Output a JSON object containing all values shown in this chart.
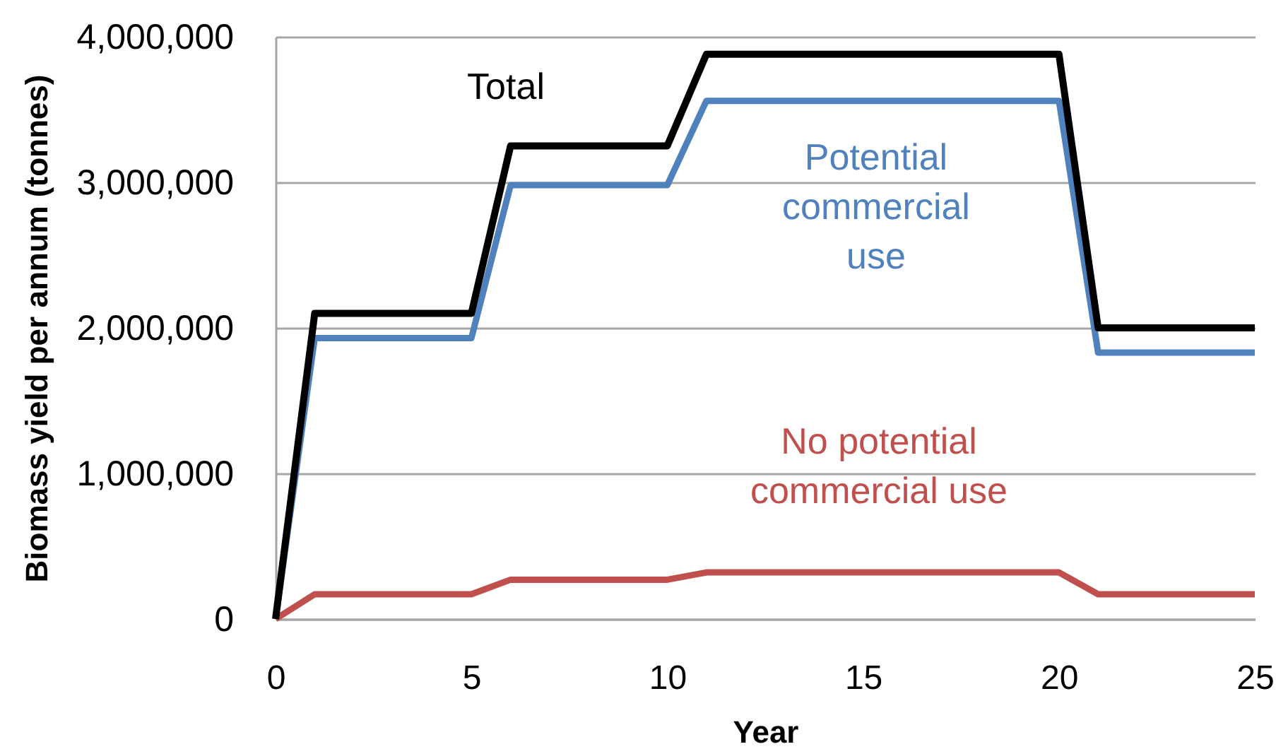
{
  "chart_data": {
    "type": "line",
    "xlabel": "Year",
    "ylabel": "Biomass yield per annum (tonnes)",
    "xlim": [
      0,
      25
    ],
    "xticks": [
      0,
      5,
      10,
      15,
      20,
      25
    ],
    "ylim": [
      0,
      4000000
    ],
    "yticks": [
      0,
      {
        "value": 1000000,
        "label": "1,000,000"
      },
      {
        "value": 2000000,
        "label": "2,000,000"
      },
      {
        "value": 3000000,
        "label": "3,000,000"
      },
      {
        "value": 4000000,
        "label": "4,000,000"
      }
    ],
    "grid": "y",
    "line_style": "solid",
    "series": [
      {
        "name": "Total",
        "color": "#000000",
        "x": [
          0,
          1,
          5,
          6,
          10,
          11,
          20,
          21,
          25
        ],
        "values": [
          0,
          2100000,
          2100000,
          3250000,
          3250000,
          3880000,
          3880000,
          2000000,
          2000000
        ]
      },
      {
        "name": "Potential commercial use",
        "color": "#4f81bd",
        "x": [
          0,
          1,
          5,
          6,
          10,
          11,
          20,
          21,
          25
        ],
        "values": [
          0,
          1930000,
          1930000,
          2980000,
          2980000,
          3560000,
          3560000,
          1830000,
          1830000
        ]
      },
      {
        "name": "No potential commercial use",
        "color": "#c0504d",
        "x": [
          0,
          1,
          5,
          6,
          10,
          11,
          20,
          21,
          25
        ],
        "values": [
          0,
          170000,
          170000,
          270000,
          270000,
          320000,
          320000,
          170000,
          170000
        ]
      }
    ]
  }
}
